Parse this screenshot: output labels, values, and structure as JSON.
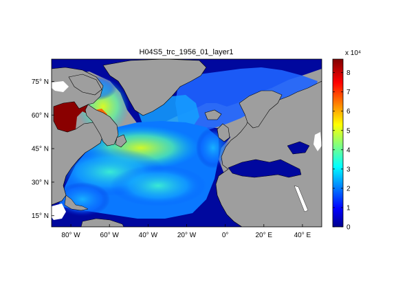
{
  "title": "H04S5_trc_1956_01_layer1",
  "map": {
    "lon_range": [
      -90,
      50
    ],
    "lat_range": [
      10,
      85
    ],
    "lat_ticks": [
      {
        "value": 15,
        "label": "15° N"
      },
      {
        "value": 30,
        "label": "30° N"
      },
      {
        "value": 45,
        "label": "45° N"
      },
      {
        "value": 60,
        "label": "60° N"
      },
      {
        "value": 75,
        "label": "75° N"
      }
    ],
    "lon_ticks": [
      {
        "value": -80,
        "label": "80° W"
      },
      {
        "value": -60,
        "label": "60° W"
      },
      {
        "value": -40,
        "label": "40° W"
      },
      {
        "value": -20,
        "label": "20° W"
      },
      {
        "value": 0,
        "label": "0°"
      },
      {
        "value": 20,
        "label": "20° E"
      },
      {
        "value": 40,
        "label": "40° E"
      }
    ],
    "land_color": "#9e9e9e",
    "ocean_low_color": "#00008f"
  },
  "colorbar": {
    "exponent_label": "x 10⁴",
    "range": [
      0,
      8.7
    ],
    "ticks": [
      {
        "value": 0,
        "label": "0"
      },
      {
        "value": 1,
        "label": "1"
      },
      {
        "value": 2,
        "label": "2"
      },
      {
        "value": 3,
        "label": "3"
      },
      {
        "value": 4,
        "label": "4"
      },
      {
        "value": 5,
        "label": "5"
      },
      {
        "value": 6,
        "label": "6"
      },
      {
        "value": 7,
        "label": "7"
      },
      {
        "value": 8,
        "label": "8"
      }
    ],
    "colormap": "jet"
  }
}
